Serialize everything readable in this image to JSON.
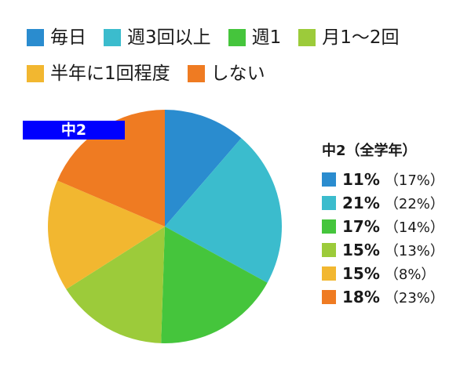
{
  "legend": [
    {
      "label": "毎日",
      "color": "#2a8ccf"
    },
    {
      "label": "週3回以上",
      "color": "#3bbccd"
    },
    {
      "label": "週1",
      "color": "#45c53c"
    },
    {
      "label": "月1〜2回",
      "color": "#9ccb3a"
    },
    {
      "label": "半年に1回程度",
      "color": "#f2b730"
    },
    {
      "label": "しない",
      "color": "#ef7b22"
    }
  ],
  "badge": "中2",
  "side_title": "中2（全学年）",
  "chart_data": {
    "type": "pie",
    "categories": [
      "毎日",
      "週3回以上",
      "週1",
      "月1〜2回",
      "半年に1回程度",
      "しない"
    ],
    "values": [
      11,
      21,
      17,
      15,
      15,
      18
    ],
    "overall_values": [
      17,
      22,
      14,
      13,
      8,
      23
    ],
    "value_labels": [
      "11%",
      "21%",
      "17%",
      "15%",
      "15%",
      "18%"
    ],
    "overall_labels": [
      "（17%）",
      "（22%）",
      "（14%）",
      "（13%）",
      "（8%）",
      "（23%）"
    ],
    "colors": [
      "#2a8ccf",
      "#3bbccd",
      "#45c53c",
      "#9ccb3a",
      "#f2b730",
      "#ef7b22"
    ],
    "start": "12 o'clock",
    "direction": "clockwise"
  }
}
